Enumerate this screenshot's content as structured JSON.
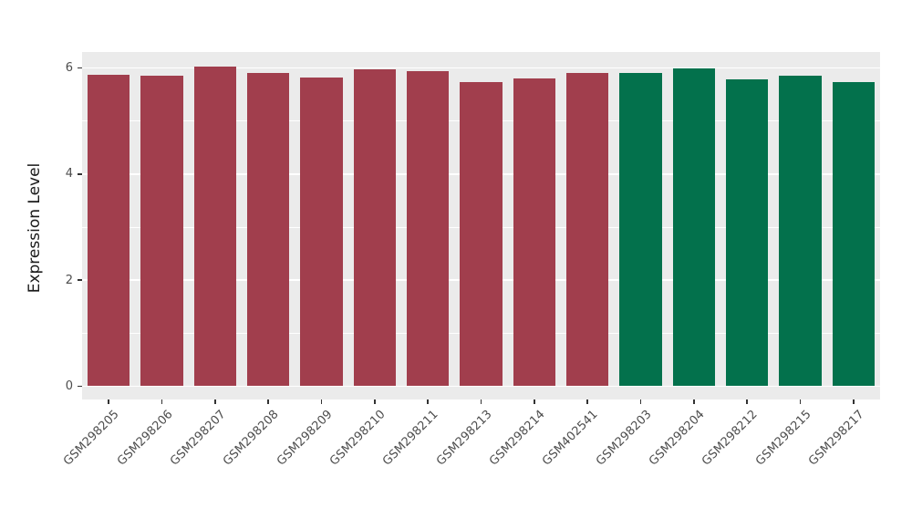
{
  "chart_data": {
    "type": "bar",
    "title": "",
    "xlabel": "",
    "ylabel": "Expression Level",
    "ylim": [
      0,
      6.3
    ],
    "yticks": [
      0,
      2,
      4,
      6
    ],
    "yticks_minor": [
      1,
      3,
      5
    ],
    "grid": "on",
    "legend_position": "none",
    "panel_background": "#EBEBEB",
    "gridline_color": "#FFFFFF",
    "group_colors": {
      "groupA": "#A13E4D",
      "groupB": "#03714C"
    },
    "series": [
      {
        "category": "GSM298205",
        "value": 5.87,
        "group": "groupA"
      },
      {
        "category": "GSM298206",
        "value": 5.85,
        "group": "groupA"
      },
      {
        "category": "GSM298207",
        "value": 6.03,
        "group": "groupA"
      },
      {
        "category": "GSM298208",
        "value": 5.9,
        "group": "groupA"
      },
      {
        "category": "GSM298209",
        "value": 5.82,
        "group": "groupA"
      },
      {
        "category": "GSM298210",
        "value": 5.97,
        "group": "groupA"
      },
      {
        "category": "GSM298211",
        "value": 5.94,
        "group": "groupA"
      },
      {
        "category": "GSM298213",
        "value": 5.73,
        "group": "groupA"
      },
      {
        "category": "GSM298214",
        "value": 5.8,
        "group": "groupA"
      },
      {
        "category": "GSM402541",
        "value": 5.9,
        "group": "groupA"
      },
      {
        "category": "GSM298203",
        "value": 5.9,
        "group": "groupB"
      },
      {
        "category": "GSM298204",
        "value": 5.99,
        "group": "groupB"
      },
      {
        "category": "GSM298212",
        "value": 5.78,
        "group": "groupB"
      },
      {
        "category": "GSM298215",
        "value": 5.86,
        "group": "groupB"
      },
      {
        "category": "GSM298217",
        "value": 5.73,
        "group": "groupB"
      }
    ]
  }
}
